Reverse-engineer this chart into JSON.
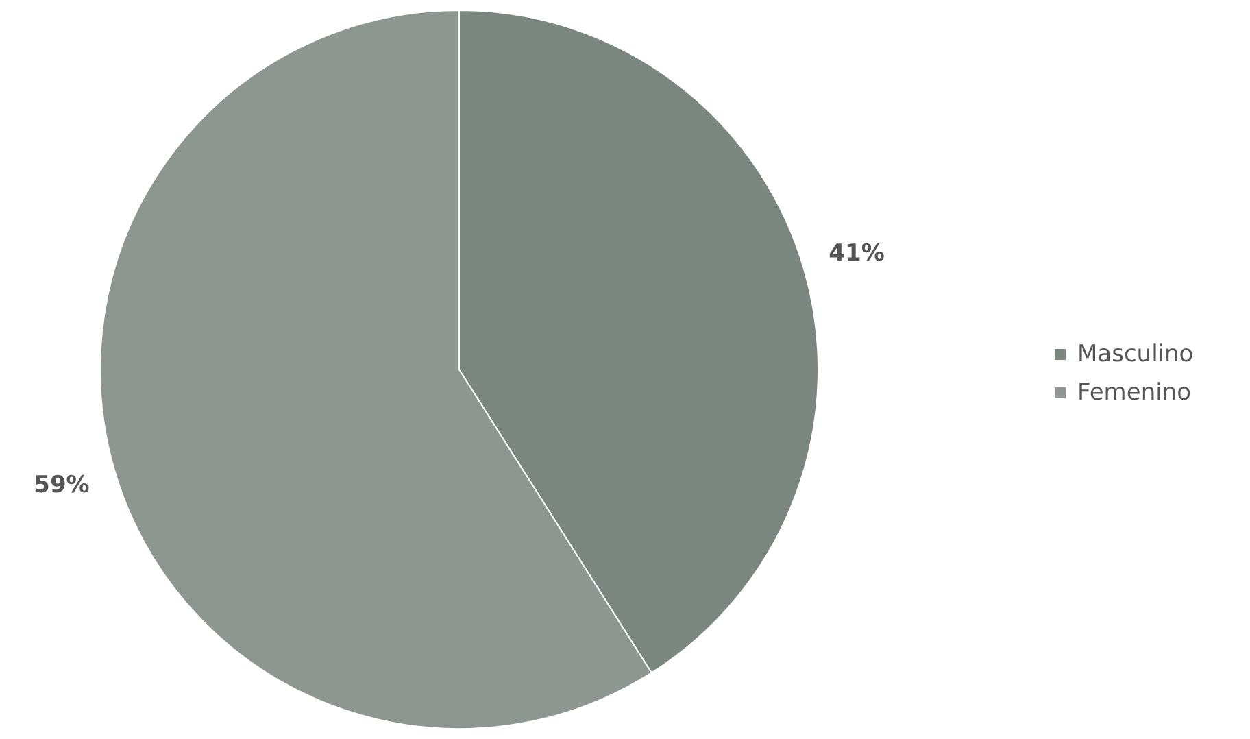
{
  "chart_data": {
    "type": "pie",
    "categories": [
      "Masculino",
      "Femenino"
    ],
    "values": [
      41,
      59
    ],
    "value_labels": [
      "41%",
      "59%"
    ],
    "colors": [
      "#7b8680",
      "#8e9691"
    ],
    "legend": "right"
  }
}
